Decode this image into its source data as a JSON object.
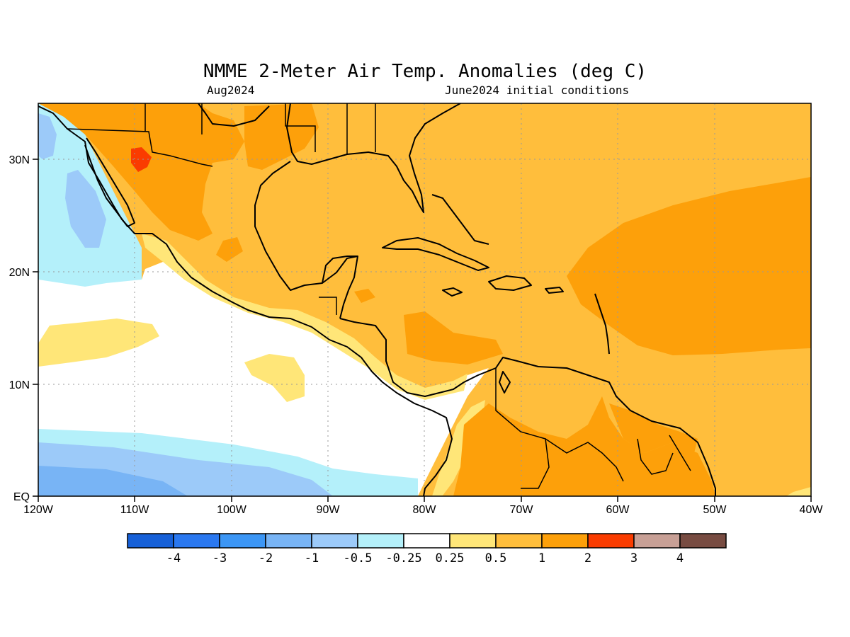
{
  "title": "NMME 2-Meter Air Temp. Anomalies (deg C)",
  "valid_month": "Aug2024",
  "initial_conditions": "June2024 initial conditions",
  "lon_labels": [
    "120W",
    "110W",
    "100W",
    "90W",
    "80W",
    "70W",
    "60W",
    "50W",
    "40W"
  ],
  "lat_labels": [
    "30N",
    "20N",
    "10N",
    "EQ"
  ],
  "colorbar": {
    "colors": [
      "#1660d8",
      "#2a78f0",
      "#3c96f5",
      "#78b4f5",
      "#9ccaf9",
      "#b4f0fa",
      "#ffffff",
      "#ffe678",
      "#ffbe3c",
      "#fda00a",
      "#fa3c00",
      "#c8a096",
      "#784c42"
    ],
    "labels": [
      "-4",
      "-3",
      "-2",
      "-1",
      "-0.5",
      "-0.25",
      "0.25",
      "0.5",
      "1",
      "2",
      "3",
      "4"
    ]
  },
  "anomaly_colors": {
    "background_ocean": "#ffbe3c",
    "above_2": "#fda00a",
    "above_3": "#fa3c00",
    "neutral": "#ffffff",
    "weak_positive": "#ffe678",
    "weak_negative": "#b4f0fa",
    "moderate_negative": "#9ccaf9",
    "strong_negative": "#78b4f5"
  }
}
